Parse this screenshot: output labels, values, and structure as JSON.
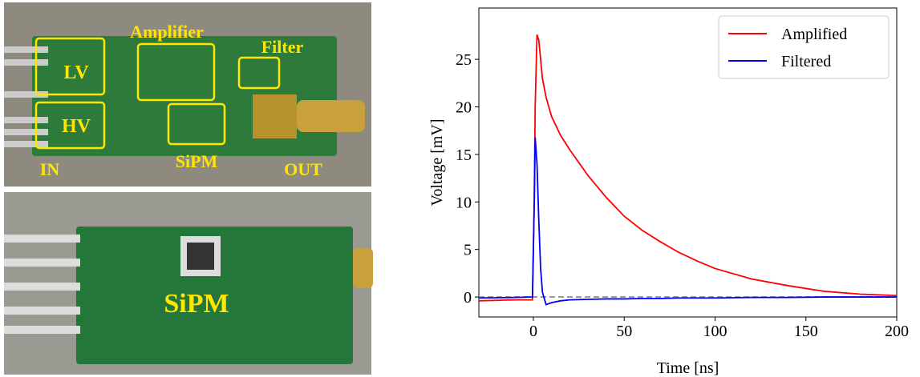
{
  "photos": {
    "top": {
      "labels": [
        "Amplifier",
        "Filter",
        "LV",
        "HV",
        "IN",
        "SiPM",
        "OUT"
      ]
    },
    "bottom": {
      "labels": [
        "SiPM"
      ]
    }
  },
  "chart_data": {
    "type": "line",
    "x": [
      -30,
      -10,
      -0.5,
      0.5,
      1,
      2,
      3,
      4,
      5,
      7,
      10,
      15,
      20,
      30,
      40,
      50,
      60,
      70,
      80,
      90,
      100,
      120,
      140,
      160,
      180,
      200
    ],
    "series": [
      {
        "name": "Amplified",
        "color": "#ff0000",
        "values": [
          -0.4,
          -0.3,
          -0.3,
          10,
          20,
          27.6,
          27,
          25,
          23,
          21,
          19,
          17,
          15.5,
          12.8,
          10.5,
          8.5,
          7,
          5.8,
          4.7,
          3.8,
          3,
          1.9,
          1.2,
          0.6,
          0.3,
          0.15
        ]
      },
      {
        "name": "Filtered",
        "color": "#0000ff",
        "values": [
          -0.1,
          -0.05,
          0,
          10,
          16.8,
          14,
          8,
          3,
          0.5,
          -0.8,
          -0.6,
          -0.4,
          -0.3,
          -0.25,
          -0.2,
          -0.2,
          -0.15,
          -0.15,
          -0.1,
          -0.1,
          -0.1,
          -0.05,
          -0.05,
          0,
          0,
          0
        ]
      }
    ],
    "hline": 0,
    "hline_color": "#999999",
    "xlabel": "Time [ns]",
    "ylabel": "Voltage [mV]",
    "xlim": [
      -30,
      200
    ],
    "ylim": [
      -2.1,
      30.4
    ],
    "xticks": [
      0,
      50,
      100,
      150,
      200
    ],
    "yticks": [
      0,
      5,
      10,
      15,
      20,
      25
    ],
    "legend": "upper right"
  }
}
